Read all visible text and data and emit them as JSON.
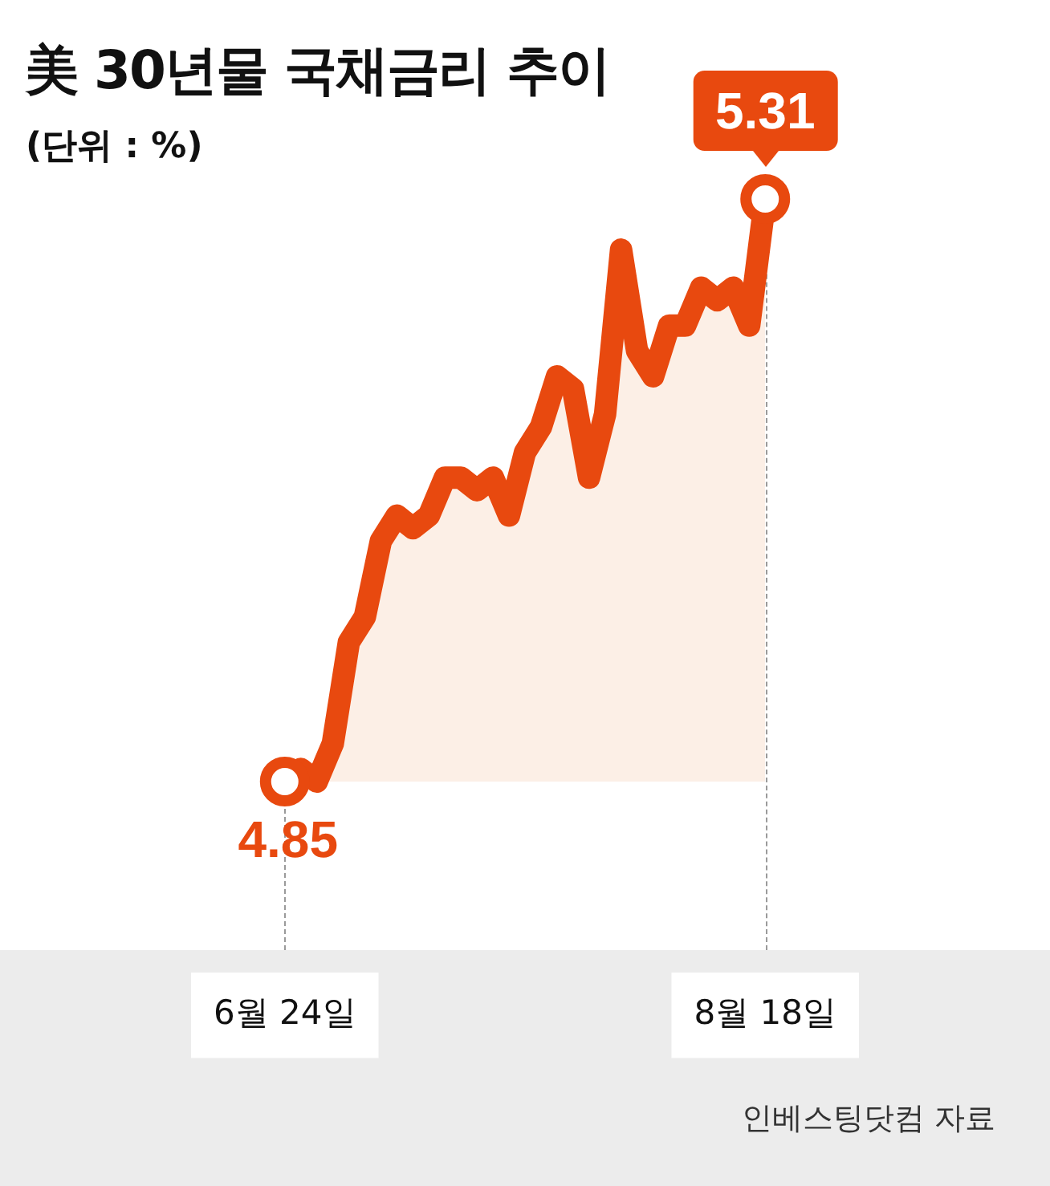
{
  "chart_data": {
    "type": "area",
    "title": "美 30년물 국채금리 추이",
    "subtitle": "(단위 : %)",
    "categories": [
      "6월 24일",
      null,
      null,
      null,
      null,
      null,
      null,
      null,
      null,
      null,
      null,
      null,
      null,
      null,
      null,
      null,
      null,
      null,
      null,
      null,
      null,
      null,
      null,
      null,
      null,
      null,
      null,
      null,
      null,
      null,
      "8월 18일"
    ],
    "series": [
      {
        "color": "#e8490f",
        "values": [
          4.85,
          4.86,
          4.85,
          4.88,
          4.96,
          4.98,
          5.04,
          5.06,
          5.05,
          5.06,
          5.09,
          5.09,
          5.08,
          5.09,
          5.06,
          5.11,
          5.13,
          5.17,
          5.16,
          5.09,
          5.14,
          5.27,
          5.19,
          5.17,
          5.21,
          5.21,
          5.24,
          5.23,
          5.24,
          5.21,
          5.31
        ],
        "value_labels": [
          "4.85",
          null,
          null,
          null,
          null,
          null,
          null,
          null,
          null,
          null,
          null,
          null,
          null,
          null,
          null,
          null,
          null,
          null,
          null,
          null,
          null,
          null,
          null,
          null,
          null,
          null,
          null,
          null,
          null,
          null,
          "5.31"
        ]
      }
    ],
    "tick_labels": "x",
    "grid": false,
    "legend": false,
    "annotations": [
      "인베스팅닷컴 자료"
    ]
  }
}
